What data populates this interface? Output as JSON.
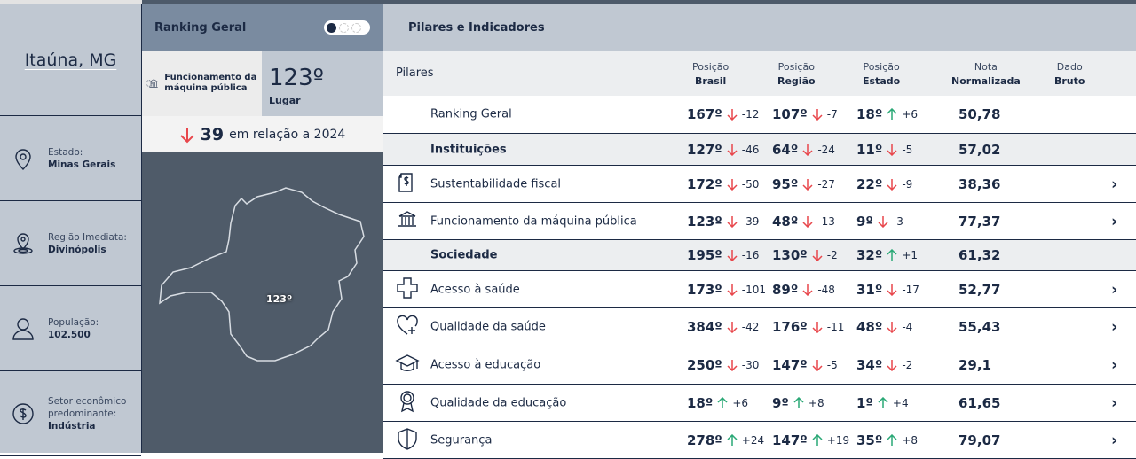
{
  "city": "Itaúna, MG",
  "sidebar": [
    {
      "icon": "location-pin-icon",
      "label": "Estado:",
      "value": "Minas Gerais"
    },
    {
      "icon": "region-pin-icon",
      "label": "Região Imediata:",
      "value": "Divinópolis"
    },
    {
      "icon": "user-icon",
      "label": "População:",
      "value": "102.500"
    },
    {
      "icon": "dollar-icon",
      "label": "Setor econômico predominante:",
      "value": "Indústria"
    }
  ],
  "ranking": {
    "title": "Ranking Geral",
    "pillar": "Funcionamento da máquina pública",
    "position": "123º",
    "position_label": "Lugar",
    "delta": "39",
    "delta_direction": "down",
    "delta_text": "em relação a 2024",
    "map_label": "123º"
  },
  "main": {
    "title": "Pilares e Indicadores",
    "headers": {
      "pilares": "Pilares",
      "brasil": [
        "Posição",
        "Brasil"
      ],
      "regiao": [
        "Posição",
        "Região"
      ],
      "estado": [
        "Posição",
        "Estado"
      ],
      "nota": [
        "Nota",
        "Normalizada"
      ],
      "dado": [
        "Dado",
        "Bruto"
      ]
    },
    "rows": [
      {
        "label": "Ranking Geral",
        "group": false,
        "icon": "",
        "br": [
          "167º",
          "-12",
          "down"
        ],
        "rg": [
          "107º",
          "-7",
          "down"
        ],
        "es": [
          "18º",
          "+6",
          "up"
        ],
        "nota": "50,78",
        "chevron": false,
        "h": 43
      },
      {
        "label": "Instituições",
        "group": true,
        "icon": "",
        "br": [
          "127º",
          "-46",
          "down"
        ],
        "rg": [
          "64º",
          "-24",
          "down"
        ],
        "es": [
          "11º",
          "-5",
          "down"
        ],
        "nota": "57,02",
        "chevron": false,
        "h": 36
      },
      {
        "label": "Sustentabilidade fiscal",
        "group": false,
        "icon": "document-dollar-icon",
        "br": [
          "172º",
          "-50",
          "down"
        ],
        "rg": [
          "95º",
          "-27",
          "down"
        ],
        "es": [
          "22º",
          "-9",
          "down"
        ],
        "nota": "38,36",
        "chevron": true,
        "h": 42
      },
      {
        "label": "Funcionamento da máquina pública",
        "group": false,
        "icon": "government-building-icon",
        "br": [
          "123º",
          "-39",
          "down"
        ],
        "rg": [
          "48º",
          "-13",
          "down"
        ],
        "es": [
          "9º",
          "-3",
          "down"
        ],
        "nota": "77,37",
        "chevron": true,
        "h": 42
      },
      {
        "label": "Sociedade",
        "group": true,
        "icon": "",
        "br": [
          "195º",
          "-16",
          "down"
        ],
        "rg": [
          "130º",
          "-2",
          "down"
        ],
        "es": [
          "32º",
          "+1",
          "up"
        ],
        "nota": "61,32",
        "chevron": false,
        "h": 35
      },
      {
        "label": "Acesso à saúde",
        "group": false,
        "icon": "health-cross-icon",
        "br": [
          "173º",
          "-101",
          "down"
        ],
        "rg": [
          "89º",
          "-48",
          "down"
        ],
        "es": [
          "31º",
          "-17",
          "down"
        ],
        "nota": "52,77",
        "chevron": true,
        "h": 42
      },
      {
        "label": "Qualidade da saúde",
        "group": false,
        "icon": "heart-plus-icon",
        "br": [
          "384º",
          "-42",
          "down"
        ],
        "rg": [
          "176º",
          "-11",
          "down"
        ],
        "es": [
          "48º",
          "-4",
          "down"
        ],
        "nota": "55,43",
        "chevron": true,
        "h": 43
      },
      {
        "label": "Acesso à educação",
        "group": false,
        "icon": "graduation-cap-icon",
        "br": [
          "250º",
          "-30",
          "down"
        ],
        "rg": [
          "147º",
          "-5",
          "down"
        ],
        "es": [
          "34º",
          "-2",
          "down"
        ],
        "nota": "29,1",
        "chevron": true,
        "h": 43
      },
      {
        "label": "Qualidade da educação",
        "group": false,
        "icon": "award-ribbon-icon",
        "br": [
          "18º",
          "+6",
          "up"
        ],
        "rg": [
          "9º",
          "+8",
          "up"
        ],
        "es": [
          "1º",
          "+4",
          "up"
        ],
        "nota": "61,65",
        "chevron": true,
        "h": 42
      },
      {
        "label": "Segurança",
        "group": false,
        "icon": "shield-icon",
        "br": [
          "278º",
          "+24",
          "up"
        ],
        "rg": [
          "147º",
          "+19",
          "up"
        ],
        "es": [
          "35º",
          "+8",
          "up"
        ],
        "nota": "79,07",
        "chevron": true,
        "h": 42
      }
    ]
  },
  "colors": {
    "down": "#e8474c",
    "up": "#2aa876",
    "navy": "#1c2a44"
  }
}
